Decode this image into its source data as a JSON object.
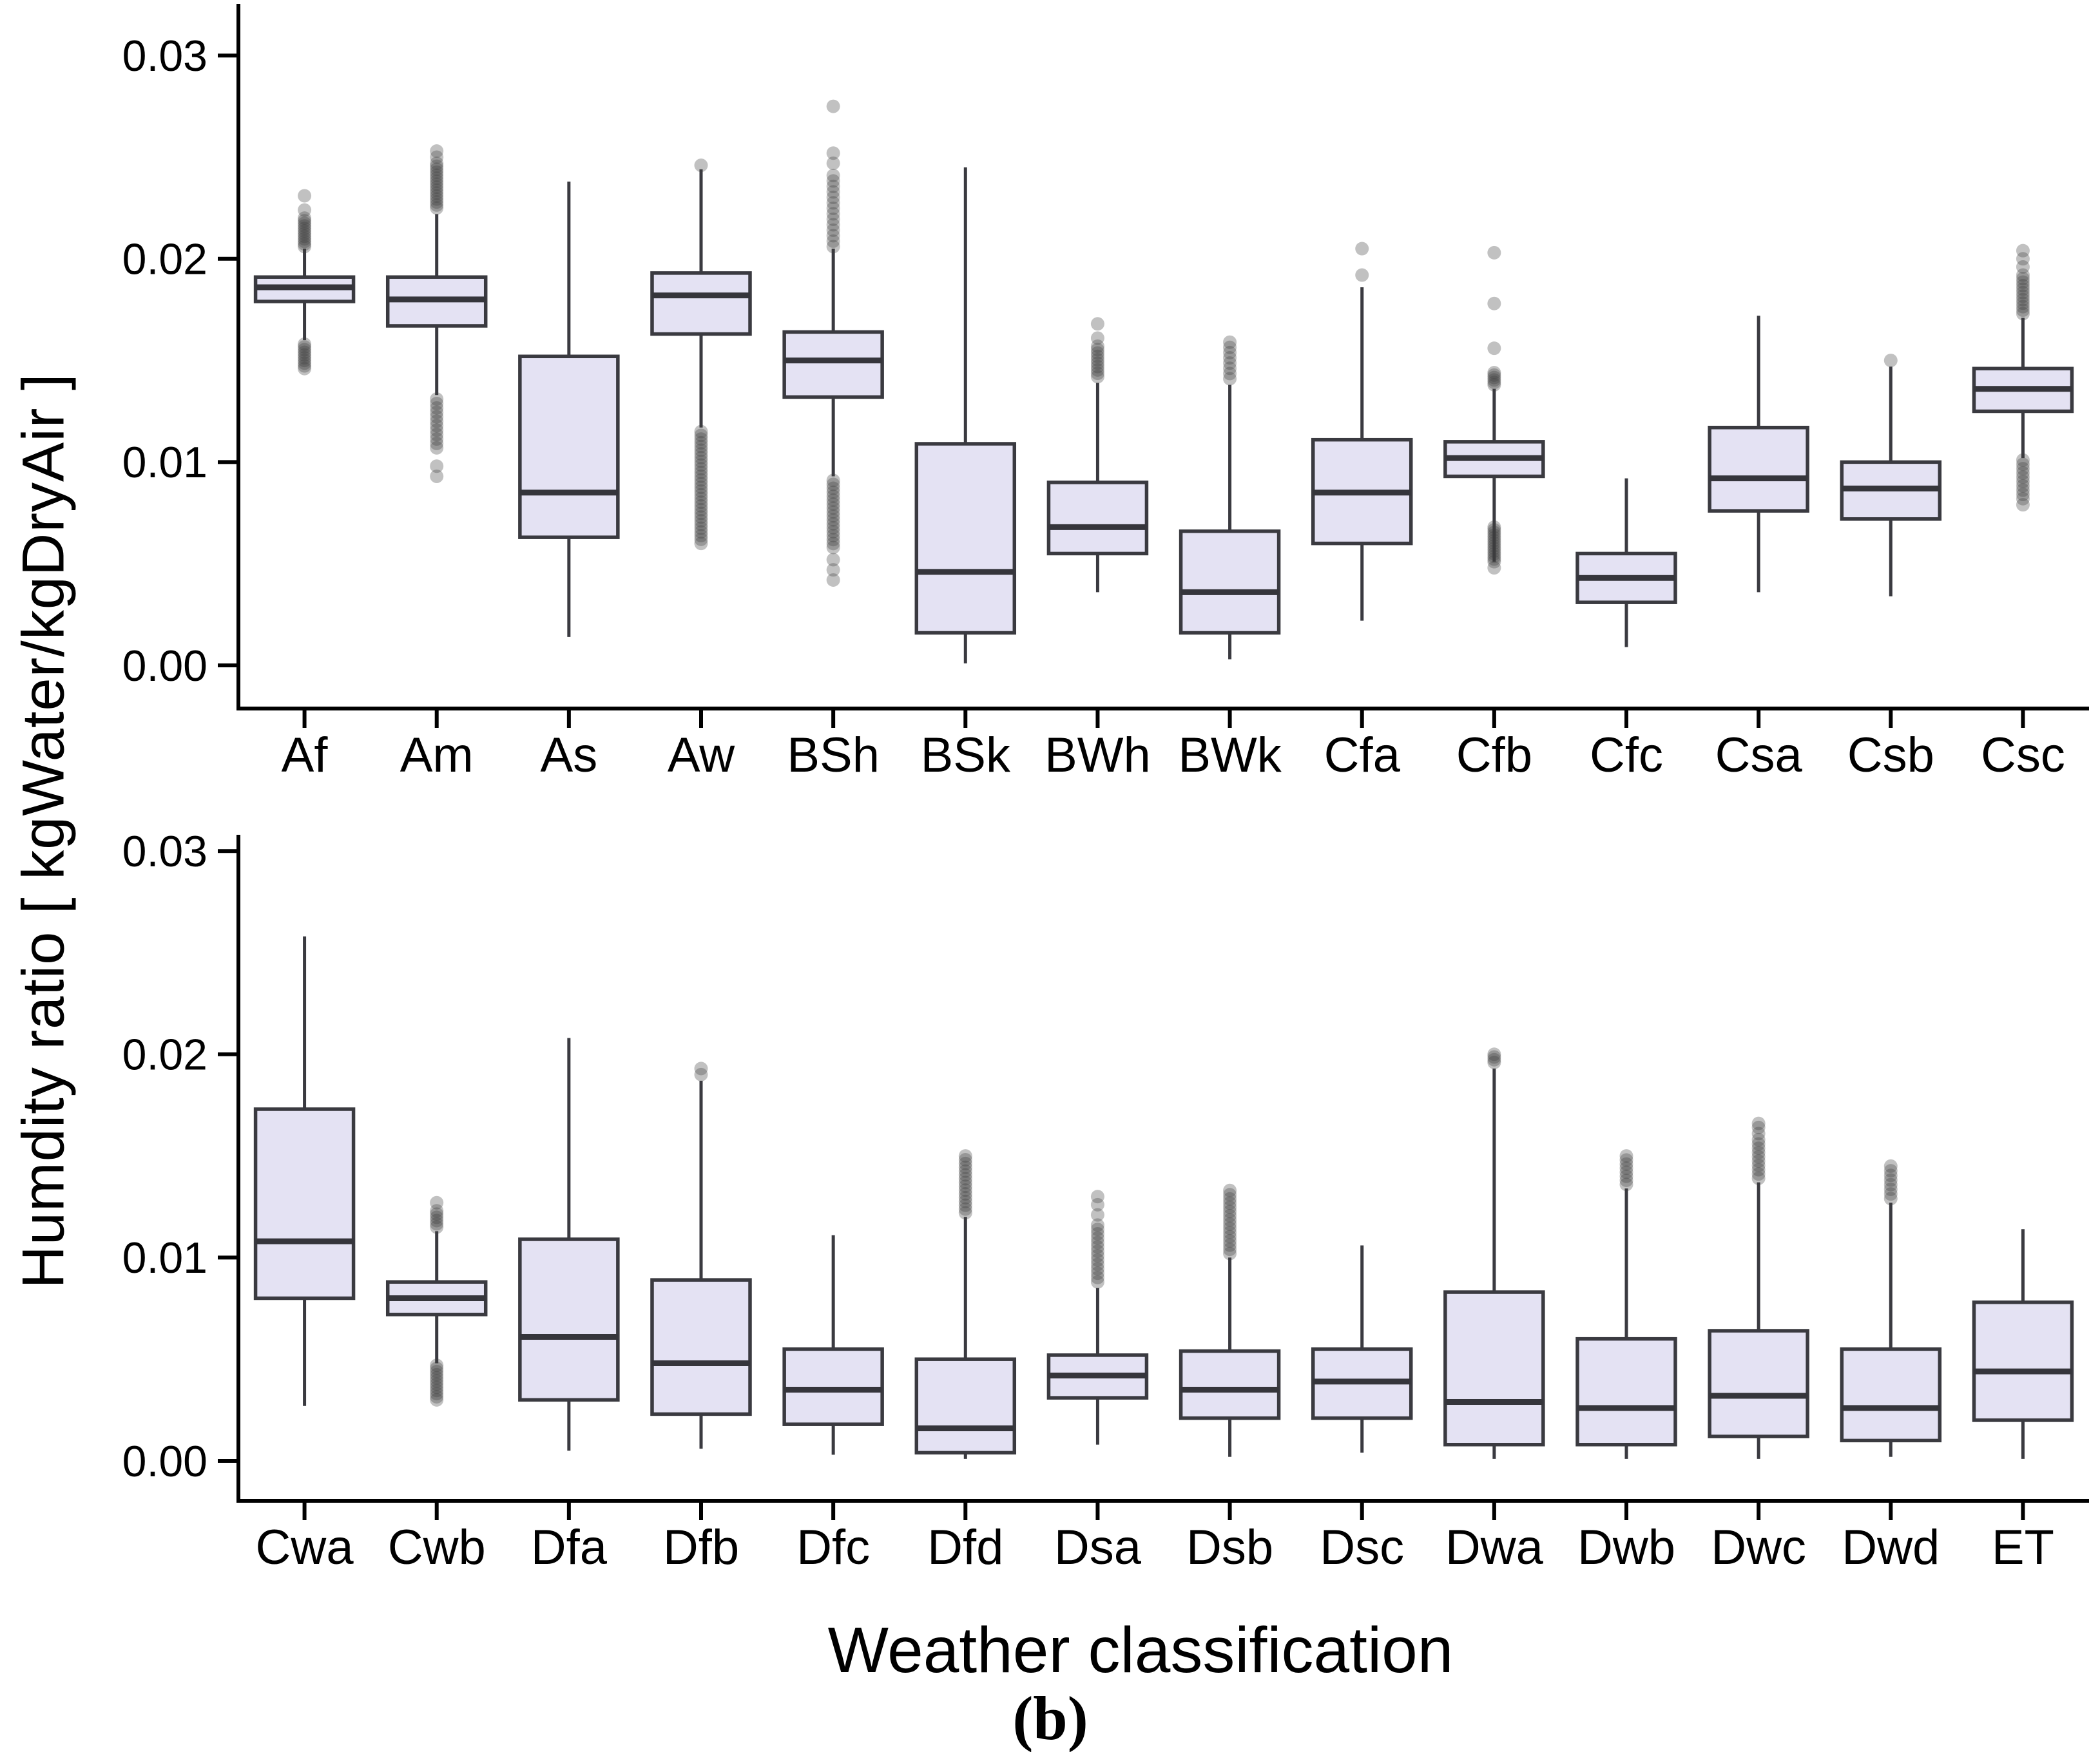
{
  "figure": {
    "y_axis_title": "Humdity ratio [ kgWater/kgDryAir ]",
    "x_axis_title": "Weather classification",
    "caption": "(b)",
    "colors": {
      "background": "#ffffff",
      "box_fill": "#e4e2f3",
      "box_stroke": "#3a3a40",
      "median_stroke": "#35353b",
      "axis": "#000000",
      "outlier": "#3f3f3f",
      "tick_label": "#000000"
    }
  },
  "y_axis": {
    "ticks": [
      {
        "value": 0.0,
        "label": "0.00"
      },
      {
        "value": 0.01,
        "label": "0.01"
      },
      {
        "value": 0.02,
        "label": "0.02"
      },
      {
        "value": 0.03,
        "label": "0.03"
      }
    ]
  },
  "chart_data": [
    {
      "type": "box",
      "panel": "top",
      "ylabel": "Humdity ratio [ kgWater/kgDryAir ]",
      "xlabel": "",
      "ylim": [
        -0.0012,
        0.0325
      ],
      "grid": false,
      "categories": [
        "Af",
        "Am",
        "As",
        "Aw",
        "BSh",
        "BSk",
        "BWh",
        "BWk",
        "Cfa",
        "Cfb",
        "Cfc",
        "Csa",
        "Csb",
        "Csc"
      ],
      "boxes": [
        {
          "label": "Af",
          "whislo": 0.016,
          "q1": 0.0179,
          "med": 0.0186,
          "q3": 0.0191,
          "whishi": 0.0205,
          "fliers_high_band": {
            "min": 0.0206,
            "max": 0.022,
            "n": 12
          },
          "fliers_high": [
            0.0224,
            0.0231
          ],
          "fliers_low_band": {
            "min": 0.0146,
            "max": 0.0158,
            "n": 10
          },
          "fliers_low": []
        },
        {
          "label": "Am",
          "whislo": 0.0133,
          "q1": 0.0167,
          "med": 0.018,
          "q3": 0.0191,
          "whishi": 0.0222,
          "fliers_high_band": {
            "min": 0.0225,
            "max": 0.0247,
            "n": 16
          },
          "fliers_high": [
            0.025,
            0.0253
          ],
          "fliers_low_band": {
            "min": 0.0107,
            "max": 0.0131,
            "n": 12
          },
          "fliers_low": [
            0.0093,
            0.0098
          ]
        },
        {
          "label": "As",
          "whislo": 0.0014,
          "q1": 0.0063,
          "med": 0.0085,
          "q3": 0.0152,
          "whishi": 0.0238,
          "fliers_high_band": null,
          "fliers_high": [],
          "fliers_low_band": null,
          "fliers_low": []
        },
        {
          "label": "Aw",
          "whislo": 0.0117,
          "q1": 0.0163,
          "med": 0.0182,
          "q3": 0.0193,
          "whishi": 0.0244,
          "fliers_high_band": null,
          "fliers_high": [
            0.0246
          ],
          "fliers_low_band": {
            "min": 0.0062,
            "max": 0.0115,
            "n": 30
          },
          "fliers_low": [
            0.006
          ]
        },
        {
          "label": "BSh",
          "whislo": 0.0093,
          "q1": 0.0132,
          "med": 0.015,
          "q3": 0.0164,
          "whishi": 0.0205,
          "fliers_high_band": {
            "min": 0.0206,
            "max": 0.0241,
            "n": 14
          },
          "fliers_high": [
            0.0247,
            0.0252,
            0.0275
          ],
          "fliers_low_band": {
            "min": 0.0058,
            "max": 0.0091,
            "n": 18
          },
          "fliers_low": [
            0.0042,
            0.0047,
            0.0052
          ]
        },
        {
          "label": "BSk",
          "whislo": 0.0001,
          "q1": 0.0016,
          "med": 0.0046,
          "q3": 0.0109,
          "whishi": 0.0245,
          "fliers_high_band": null,
          "fliers_high": [],
          "fliers_low_band": null,
          "fliers_low": []
        },
        {
          "label": "BWh",
          "whislo": 0.0036,
          "q1": 0.0055,
          "med": 0.0068,
          "q3": 0.009,
          "whishi": 0.0139,
          "fliers_high_band": {
            "min": 0.0142,
            "max": 0.0157,
            "n": 10
          },
          "fliers_high": [
            0.0161,
            0.0168
          ],
          "fliers_low_band": null,
          "fliers_low": []
        },
        {
          "label": "BWk",
          "whislo": 0.0003,
          "q1": 0.0016,
          "med": 0.0036,
          "q3": 0.0066,
          "whishi": 0.0138,
          "fliers_high_band": {
            "min": 0.0141,
            "max": 0.0159,
            "n": 8
          },
          "fliers_high": [],
          "fliers_low_band": null,
          "fliers_low": []
        },
        {
          "label": "Cfa",
          "whislo": 0.0022,
          "q1": 0.006,
          "med": 0.0085,
          "q3": 0.0111,
          "whishi": 0.0186,
          "fliers_high_band": null,
          "fliers_high": [
            0.0192,
            0.0205
          ],
          "fliers_low_band": null,
          "fliers_low": []
        },
        {
          "label": "Cfb",
          "whislo": 0.0051,
          "q1": 0.0093,
          "med": 0.0102,
          "q3": 0.011,
          "whishi": 0.0136,
          "fliers_high_band": {
            "min": 0.0138,
            "max": 0.0144,
            "n": 6
          },
          "fliers_high": [
            0.0156,
            0.0178,
            0.0203
          ],
          "fliers_low_band": {
            "min": 0.0051,
            "max": 0.0068,
            "n": 14
          },
          "fliers_low": [
            0.0048
          ]
        },
        {
          "label": "Cfc",
          "whislo": 0.0009,
          "q1": 0.0031,
          "med": 0.0043,
          "q3": 0.0055,
          "whishi": 0.0092,
          "fliers_high_band": null,
          "fliers_high": [],
          "fliers_low_band": null,
          "fliers_low": []
        },
        {
          "label": "Csa",
          "whislo": 0.0036,
          "q1": 0.0076,
          "med": 0.0092,
          "q3": 0.0117,
          "whishi": 0.0172,
          "fliers_high_band": null,
          "fliers_high": [],
          "fliers_low_band": null,
          "fliers_low": []
        },
        {
          "label": "Csb",
          "whislo": 0.0034,
          "q1": 0.0072,
          "med": 0.0087,
          "q3": 0.01,
          "whishi": 0.0147,
          "fliers_high_band": null,
          "fliers_high": [
            0.015
          ],
          "fliers_low_band": null,
          "fliers_low": []
        },
        {
          "label": "Csc",
          "whislo": 0.0102,
          "q1": 0.0125,
          "med": 0.0136,
          "q3": 0.0146,
          "whishi": 0.0171,
          "fliers_high_band": {
            "min": 0.0173,
            "max": 0.0192,
            "n": 12
          },
          "fliers_high": [
            0.0196,
            0.02,
            0.0204
          ],
          "fliers_low_band": {
            "min": 0.0082,
            "max": 0.0101,
            "n": 10
          },
          "fliers_low": [
            0.0079
          ]
        }
      ]
    },
    {
      "type": "box",
      "panel": "bottom",
      "ylabel": "Humdity ratio [ kgWater/kgDryAir ]",
      "xlabel": "Weather classification",
      "ylim": [
        -0.0012,
        0.0306
      ],
      "grid": false,
      "categories": [
        "Cwa",
        "Cwb",
        "Dfa",
        "Dfb",
        "Dfc",
        "Dfd",
        "Dsa",
        "Dsb",
        "Dsc",
        "Dwa",
        "Dwb",
        "Dwc",
        "Dwd",
        "ET"
      ],
      "boxes": [
        {
          "label": "Cwa",
          "whislo": 0.0027,
          "q1": 0.008,
          "med": 0.0108,
          "q3": 0.0173,
          "whishi": 0.0258,
          "fliers_high_band": null,
          "fliers_high": [],
          "fliers_low_band": null,
          "fliers_low": []
        },
        {
          "label": "Cwb",
          "whislo": 0.0048,
          "q1": 0.0072,
          "med": 0.008,
          "q3": 0.0088,
          "whishi": 0.0113,
          "fliers_high_band": {
            "min": 0.0115,
            "max": 0.0123,
            "n": 6
          },
          "fliers_high": [
            0.0127
          ],
          "fliers_low_band": {
            "min": 0.003,
            "max": 0.0047,
            "n": 12
          },
          "fliers_low": []
        },
        {
          "label": "Dfa",
          "whislo": 0.0005,
          "q1": 0.003,
          "med": 0.0061,
          "q3": 0.0109,
          "whishi": 0.0208,
          "fliers_high_band": null,
          "fliers_high": [],
          "fliers_low_band": null,
          "fliers_low": []
        },
        {
          "label": "Dfb",
          "whislo": 0.0006,
          "q1": 0.0023,
          "med": 0.0048,
          "q3": 0.0089,
          "whishi": 0.0187,
          "fliers_high_band": null,
          "fliers_high": [
            0.019,
            0.0193
          ],
          "fliers_low_band": null,
          "fliers_low": []
        },
        {
          "label": "Dfc",
          "whislo": 0.0003,
          "q1": 0.0018,
          "med": 0.0035,
          "q3": 0.0055,
          "whishi": 0.0111,
          "fliers_high_band": null,
          "fliers_high": [],
          "fliers_low_band": null,
          "fliers_low": []
        },
        {
          "label": "Dfd",
          "whislo": 0.0001,
          "q1": 0.0004,
          "med": 0.0016,
          "q3": 0.005,
          "whishi": 0.012,
          "fliers_high_band": {
            "min": 0.0122,
            "max": 0.015,
            "n": 16
          },
          "fliers_high": [],
          "fliers_low_band": null,
          "fliers_low": []
        },
        {
          "label": "Dsa",
          "whislo": 0.0008,
          "q1": 0.0031,
          "med": 0.0042,
          "q3": 0.0052,
          "whishi": 0.0085,
          "fliers_high_band": {
            "min": 0.0088,
            "max": 0.0116,
            "n": 14
          },
          "fliers_high": [
            0.0121,
            0.0126,
            0.013
          ],
          "fliers_low_band": null,
          "fliers_low": []
        },
        {
          "label": "Dsb",
          "whislo": 0.0002,
          "q1": 0.0021,
          "med": 0.0035,
          "q3": 0.0054,
          "whishi": 0.01,
          "fliers_high_band": {
            "min": 0.0102,
            "max": 0.0133,
            "n": 16
          },
          "fliers_high": [],
          "fliers_low_band": null,
          "fliers_low": []
        },
        {
          "label": "Dsc",
          "whislo": 0.0004,
          "q1": 0.0021,
          "med": 0.0039,
          "q3": 0.0055,
          "whishi": 0.0106,
          "fliers_high_band": null,
          "fliers_high": [],
          "fliers_low_band": null,
          "fliers_low": []
        },
        {
          "label": "Dwa",
          "whislo": 0.0001,
          "q1": 0.0008,
          "med": 0.0029,
          "q3": 0.0083,
          "whishi": 0.0193,
          "fliers_high_band": {
            "min": 0.0196,
            "max": 0.02,
            "n": 4
          },
          "fliers_high": [],
          "fliers_low_band": null,
          "fliers_low": []
        },
        {
          "label": "Dwb",
          "whislo": 0.0001,
          "q1": 0.0008,
          "med": 0.0026,
          "q3": 0.006,
          "whishi": 0.0134,
          "fliers_high_band": {
            "min": 0.0136,
            "max": 0.015,
            "n": 8
          },
          "fliers_high": [],
          "fliers_low_band": null,
          "fliers_low": []
        },
        {
          "label": "Dwc",
          "whislo": 0.0001,
          "q1": 0.0012,
          "med": 0.0032,
          "q3": 0.0064,
          "whishi": 0.0137,
          "fliers_high_band": {
            "min": 0.0139,
            "max": 0.0158,
            "n": 10
          },
          "fliers_high": [
            0.0161,
            0.0164,
            0.0166
          ],
          "fliers_low_band": null,
          "fliers_low": []
        },
        {
          "label": "Dwd",
          "whislo": 0.0002,
          "q1": 0.001,
          "med": 0.0026,
          "q3": 0.0055,
          "whishi": 0.0127,
          "fliers_high_band": {
            "min": 0.0129,
            "max": 0.0145,
            "n": 8
          },
          "fliers_high": [],
          "fliers_low_band": null,
          "fliers_low": []
        },
        {
          "label": "ET",
          "whislo": 0.0001,
          "q1": 0.002,
          "med": 0.0044,
          "q3": 0.0078,
          "whishi": 0.0114,
          "fliers_high_band": null,
          "fliers_high": [],
          "fliers_low_band": null,
          "fliers_low": []
        }
      ]
    }
  ]
}
